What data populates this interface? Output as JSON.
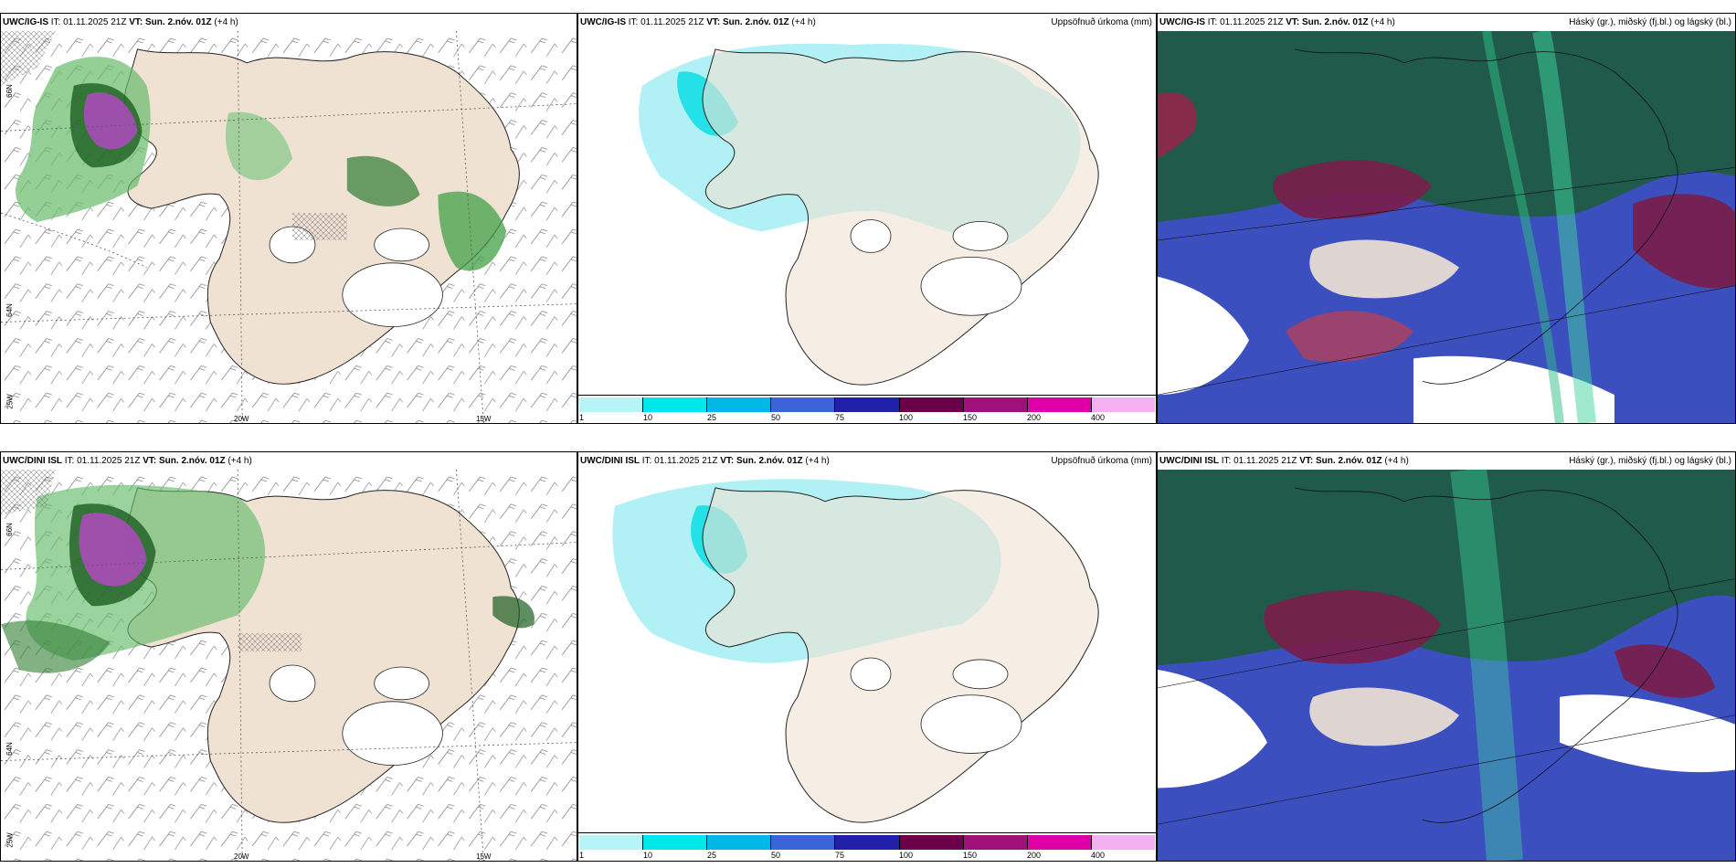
{
  "rows": [
    {
      "model": "UWC/IG-IS",
      "it_label": "IT:",
      "it_value": "01.11.2025 21Z",
      "vt_label": "VT:",
      "vt_value": "Sun. 2.nóv. 01Z",
      "lead": "(+4 h)",
      "mid_title": "Uppsöfnuð úrkoma (mm)",
      "right_title": "Háský (gr.), miðský (fj.bl.) og lágský (bl.)",
      "lon_labels": [
        "20W",
        "15W"
      ],
      "lat_labels": [
        "66N",
        "64N",
        "25W"
      ]
    },
    {
      "model": "UWC/DINI ISL",
      "it_label": "IT:",
      "it_value": "01.11.2025 21Z",
      "vt_label": "VT:",
      "vt_value": "Sun. 2.nóv. 01Z",
      "lead": "(+4 h)",
      "mid_title": "Uppsöfnuð úrkoma (mm)",
      "right_title": "Háský (gr.), miðský (fj.bl.) og lágský (bl.)",
      "lon_labels": [
        "20W",
        "15W"
      ],
      "lat_labels": [
        "66N",
        "64N",
        "25W"
      ]
    }
  ],
  "legend": {
    "labels": [
      "1",
      "10",
      "25",
      "50",
      "75",
      "100",
      "150",
      "200",
      "400"
    ],
    "colors": [
      "#b5f5f7",
      "#00e8ec",
      "#00b8e6",
      "#3a64d8",
      "#2020a8",
      "#6a0048",
      "#a0107a",
      "#e000a8",
      "#f4b0f0"
    ]
  },
  "colors": {
    "land": "#f0e2d3",
    "sea": "#ffffff",
    "cloud_high": "#1f5a4a",
    "cloud_mid": "#6b1d46",
    "cloud_low": "#4a4ab8",
    "precip_light": "#a8f0f4",
    "green_dark": "#2e7d32",
    "green_light": "#b9e6b9",
    "purple": "#b04ac0"
  }
}
